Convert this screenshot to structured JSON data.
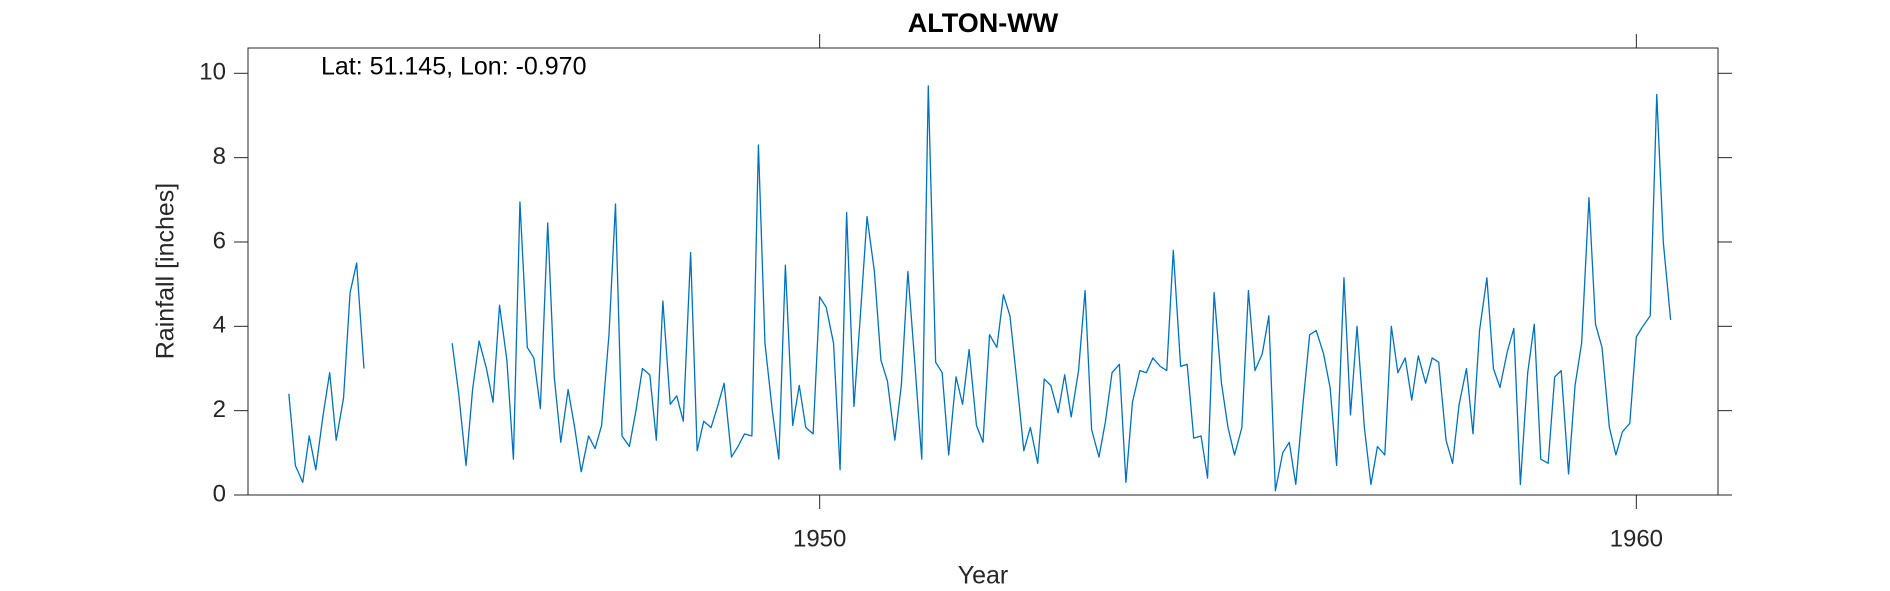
{
  "chart_data": {
    "type": "line",
    "title": "ALTON-WW",
    "annotation": "Lat: 51.145, Lon: -0.970",
    "xlabel": "Year",
    "ylabel": "Rainfall [inches]",
    "xlim": [
      1943,
      1961
    ],
    "xticks": [
      1950,
      1960
    ],
    "ylim": [
      0,
      10.6
    ],
    "yticks": [
      0,
      2,
      4,
      6,
      8,
      10
    ],
    "x": [
      1943.5,
      1943.58,
      1943.67,
      1943.75,
      1943.83,
      1943.92,
      1944.0,
      1944.08,
      1944.17,
      1944.25,
      1944.33,
      1944.42,
      1945.0,
      1945.5,
      1945.58,
      1945.67,
      1945.75,
      1945.83,
      1945.92,
      1946.0,
      1946.08,
      1946.17,
      1946.25,
      1946.33,
      1946.42,
      1946.5,
      1946.58,
      1946.67,
      1946.75,
      1946.83,
      1946.92,
      1947.0,
      1947.08,
      1947.17,
      1947.25,
      1947.33,
      1947.42,
      1947.5,
      1947.58,
      1947.67,
      1947.75,
      1947.83,
      1947.92,
      1948.0,
      1948.08,
      1948.17,
      1948.25,
      1948.33,
      1948.42,
      1948.5,
      1948.58,
      1948.67,
      1948.75,
      1948.83,
      1948.92,
      1949.0,
      1949.08,
      1949.17,
      1949.25,
      1949.33,
      1949.42,
      1949.5,
      1949.58,
      1949.67,
      1949.75,
      1949.83,
      1949.92,
      1950.0,
      1950.08,
      1950.17,
      1950.25,
      1950.33,
      1950.42,
      1950.5,
      1950.58,
      1950.67,
      1950.75,
      1950.83,
      1950.92,
      1951.0,
      1951.08,
      1951.17,
      1951.25,
      1951.33,
      1951.42,
      1951.5,
      1951.58,
      1951.67,
      1951.75,
      1951.83,
      1951.92,
      1952.0,
      1952.08,
      1952.17,
      1952.25,
      1952.33,
      1952.42,
      1952.5,
      1952.58,
      1952.67,
      1952.75,
      1952.83,
      1952.92,
      1953.0,
      1953.08,
      1953.17,
      1953.25,
      1953.33,
      1953.42,
      1953.5,
      1953.58,
      1953.67,
      1953.75,
      1953.83,
      1953.92,
      1954.0,
      1954.08,
      1954.17,
      1954.25,
      1954.33,
      1954.42,
      1954.5,
      1954.58,
      1954.67,
      1954.75,
      1954.83,
      1954.92,
      1955.0,
      1955.08,
      1955.17,
      1955.25,
      1955.33,
      1955.42,
      1955.5,
      1955.58,
      1955.67,
      1955.75,
      1955.83,
      1955.92,
      1956.0,
      1956.08,
      1956.17,
      1956.25,
      1956.33,
      1956.42,
      1956.5,
      1956.58,
      1956.67,
      1956.75,
      1956.83,
      1956.92,
      1957.0,
      1957.08,
      1957.17,
      1957.25,
      1957.33,
      1957.42,
      1957.5,
      1957.58,
      1957.67,
      1957.75,
      1957.83,
      1957.92,
      1958.0,
      1958.08,
      1958.17,
      1958.25,
      1958.33,
      1958.42,
      1958.5,
      1958.58,
      1958.67,
      1958.75,
      1958.83,
      1958.92,
      1959.0,
      1959.08,
      1959.17,
      1959.25,
      1959.33,
      1959.42,
      1959.5,
      1959.58,
      1959.67,
      1959.75,
      1959.83,
      1959.92,
      1960.0,
      1960.08,
      1960.17,
      1960.25,
      1960.33,
      1960.42
    ],
    "series": [
      {
        "name": "Rainfall",
        "color": "#0072bd",
        "values": [
          2.4,
          0.7,
          0.3,
          1.4,
          0.6,
          1.9,
          2.9,
          1.3,
          2.3,
          4.8,
          5.5,
          3.0,
          null,
          3.6,
          2.4,
          0.7,
          2.5,
          3.65,
          3.0,
          2.2,
          4.5,
          3.2,
          0.85,
          6.95,
          3.5,
          3.25,
          2.05,
          6.45,
          2.8,
          1.25,
          2.5,
          1.6,
          0.55,
          1.4,
          1.1,
          1.65,
          3.8,
          6.9,
          1.4,
          1.15,
          2.0,
          3.0,
          2.85,
          1.3,
          4.6,
          2.15,
          2.35,
          1.75,
          5.75,
          1.05,
          1.75,
          1.6,
          2.1,
          2.65,
          0.9,
          1.15,
          1.45,
          1.4,
          8.3,
          3.6,
          2.0,
          0.85,
          5.45,
          1.65,
          2.6,
          1.6,
          1.45,
          4.7,
          4.45,
          3.6,
          0.6,
          6.7,
          2.1,
          4.3,
          6.6,
          5.3,
          3.2,
          2.7,
          1.3,
          2.6,
          5.3,
          3.0,
          0.85,
          9.7,
          3.15,
          2.9,
          0.95,
          2.8,
          2.15,
          3.45,
          1.65,
          1.25,
          3.8,
          3.5,
          4.75,
          4.25,
          2.6,
          1.05,
          1.6,
          0.75,
          2.75,
          2.6,
          1.95,
          2.85,
          1.85,
          2.95,
          4.85,
          1.55,
          0.9,
          1.75,
          2.9,
          3.1,
          0.3,
          2.2,
          2.95,
          2.9,
          3.25,
          3.05,
          2.95,
          5.8,
          3.05,
          3.1,
          1.35,
          1.4,
          0.4,
          4.8,
          2.65,
          1.6,
          0.95,
          1.6,
          4.85,
          2.95,
          3.35,
          4.25,
          0.1,
          1.0,
          1.25,
          0.25,
          2.2,
          3.8,
          3.9,
          3.35,
          2.55,
          0.7,
          5.15,
          1.9,
          4.0,
          1.6,
          0.25,
          1.15,
          0.95,
          4.0,
          2.9,
          3.25,
          2.25,
          3.3,
          2.65,
          3.25,
          3.15,
          1.3,
          0.75,
          2.15,
          3.0,
          1.45,
          3.9,
          5.15,
          3.0,
          2.55,
          3.4,
          3.95,
          0.25,
          2.9,
          4.05,
          0.85,
          0.75,
          2.8,
          2.95,
          0.5,
          2.6,
          3.6,
          7.05,
          4.05,
          3.5,
          1.6,
          0.95,
          1.5,
          1.7,
          3.75,
          4.0,
          4.25,
          9.5,
          6.0,
          4.15
        ]
      }
    ]
  }
}
